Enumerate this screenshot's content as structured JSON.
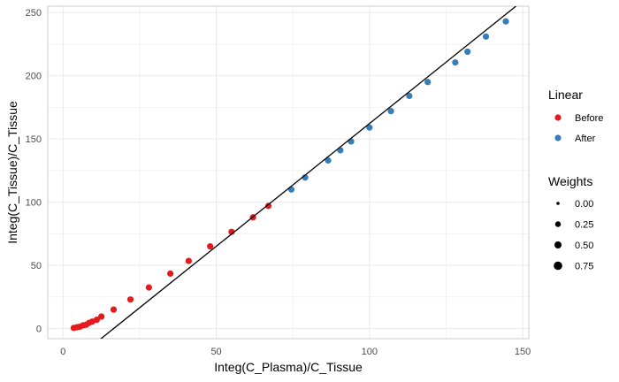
{
  "chart_data": {
    "type": "scatter",
    "xlabel": "Integ(C_Plasma)/C_Tissue",
    "ylabel": "Integ(C_Tissue)/C_Tissue",
    "xlim": [
      -5,
      152
    ],
    "ylim": [
      -8,
      255
    ],
    "xticks": [
      0,
      50,
      100,
      150
    ],
    "yticks": [
      0,
      50,
      100,
      150,
      200,
      250
    ],
    "grid": true,
    "legend_position": "right",
    "colors": {
      "Before": "#e41a1c",
      "After": "#377eb8",
      "line": "#000000",
      "grid": "#ebebeb",
      "panel_border": "#cccccc"
    },
    "legend": {
      "color_title": "Linear",
      "color_entries": [
        "Before",
        "After"
      ],
      "size_title": "Weights",
      "size_entries": [
        "0.00",
        "0.25",
        "0.50",
        "0.75"
      ]
    },
    "series": [
      {
        "name": "Before",
        "points": [
          [
            3.5,
            0.5
          ],
          [
            4.5,
            1
          ],
          [
            5.5,
            1.5
          ],
          [
            6.5,
            2.5
          ],
          [
            7.5,
            3
          ],
          [
            8.5,
            4.5
          ],
          [
            9.5,
            5.5
          ],
          [
            11,
            7
          ],
          [
            12.5,
            9.5
          ],
          [
            16.5,
            15
          ],
          [
            22,
            23
          ],
          [
            28,
            32.5
          ],
          [
            35,
            43.5
          ],
          [
            41,
            53.5
          ],
          [
            48,
            65
          ],
          [
            55,
            76.5
          ],
          [
            62,
            88
          ],
          [
            67,
            97
          ]
        ]
      },
      {
        "name": "After",
        "points": [
          [
            74.5,
            110
          ],
          [
            79,
            119.5
          ],
          [
            86.5,
            133
          ],
          [
            90.5,
            141
          ],
          [
            94,
            148
          ],
          [
            100,
            159
          ],
          [
            107,
            172
          ],
          [
            113,
            184
          ],
          [
            119,
            195
          ],
          [
            128,
            210.5
          ],
          [
            132,
            219
          ],
          [
            138,
            231
          ],
          [
            144.5,
            243
          ]
        ]
      }
    ],
    "fit_line": {
      "x": [
        9.8,
        147.8
      ],
      "y": [
        -13,
        255
      ]
    }
  }
}
